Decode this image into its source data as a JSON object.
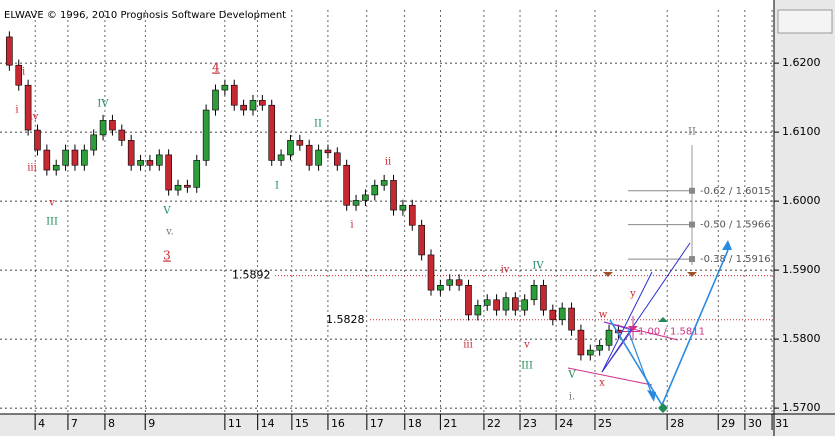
{
  "chart_data": {
    "type": "candlestick",
    "title": "ELWAVE © 1996, 2010 Prognosis Software Development",
    "x": [
      2,
      4,
      6,
      8,
      10,
      12,
      14,
      16,
      18,
      20,
      22,
      24,
      26,
      28,
      30,
      32,
      34,
      36,
      38,
      40,
      42,
      44,
      46,
      48,
      50,
      52,
      54,
      56,
      58,
      60,
      62,
      64,
      66,
      68,
      70,
      72,
      74,
      76,
      78,
      80,
      82,
      84,
      86,
      88,
      90,
      92,
      94,
      96,
      98,
      100,
      102,
      104,
      106,
      108,
      110,
      112,
      114,
      116,
      118,
      120,
      122,
      124,
      126,
      128,
      130,
      132
    ],
    "open": [
      1.6238,
      1.6197,
      1.6168,
      1.6103,
      1.6074,
      1.6045,
      1.6052,
      1.6074,
      1.6052,
      1.6074,
      1.6096,
      1.6117,
      1.6103,
      1.6088,
      1.6052,
      1.6059,
      1.6052,
      1.6067,
      1.6016,
      1.6023,
      1.602,
      1.6059,
      1.6132,
      1.6161,
      1.6168,
      1.6139,
      1.6132,
      1.6146,
      1.6139,
      1.6059,
      1.6067,
      1.6088,
      1.6081,
      1.6052,
      1.6074,
      1.607,
      1.6052,
      1.5994,
      1.6001,
      1.6009,
      1.6023,
      1.603,
      1.5987,
      1.5994,
      1.5965,
      1.5922,
      1.5871,
      1.5878,
      1.5886,
      1.5878,
      1.5835,
      1.5849,
      1.5857,
      1.5842,
      1.586,
      1.5842,
      1.5857,
      1.5878,
      1.5842,
      1.5828,
      1.5845,
      1.5813,
      1.5777,
      1.5784,
      1.5791,
      1.5813
    ],
    "high": [
      1.6246,
      1.6205,
      1.6176,
      1.6111,
      1.6082,
      1.606,
      1.6082,
      1.6082,
      1.6082,
      1.6104,
      1.6125,
      1.6125,
      1.6111,
      1.6096,
      1.6067,
      1.6067,
      1.6075,
      1.6075,
      1.6031,
      1.6031,
      1.6067,
      1.614,
      1.6169,
      1.6176,
      1.6176,
      1.6147,
      1.6154,
      1.6154,
      1.6147,
      1.6075,
      1.6096,
      1.6096,
      1.6089,
      1.6082,
      1.6082,
      1.6078,
      1.606,
      1.6009,
      1.6017,
      1.6031,
      1.6038,
      1.6038,
      1.6002,
      1.6002,
      1.5973,
      1.593,
      1.5886,
      1.5894,
      1.5894,
      1.5886,
      1.5857,
      1.5865,
      1.5865,
      1.5868,
      1.5868,
      1.5865,
      1.5886,
      1.5886,
      1.585,
      1.5853,
      1.5853,
      1.5821,
      1.5792,
      1.5799,
      1.5821,
      1.5821
    ],
    "low": [
      1.6189,
      1.616,
      1.6095,
      1.6066,
      1.6037,
      1.6037,
      1.6044,
      1.6044,
      1.6044,
      1.6066,
      1.6088,
      1.6095,
      1.608,
      1.6044,
      1.6044,
      1.6044,
      1.6044,
      1.6008,
      1.6008,
      1.6012,
      1.6012,
      1.6051,
      1.6124,
      1.6153,
      1.6131,
      1.6124,
      1.6124,
      1.6131,
      1.6051,
      1.6051,
      1.6059,
      1.6073,
      1.6044,
      1.6044,
      1.6062,
      1.6044,
      1.5986,
      1.5986,
      1.5993,
      1.6001,
      1.6015,
      1.5979,
      1.5979,
      1.5957,
      1.5914,
      1.5863,
      1.5863,
      1.587,
      1.587,
      1.5827,
      1.5827,
      1.5841,
      1.5834,
      1.5834,
      1.5834,
      1.5834,
      1.5849,
      1.5834,
      1.582,
      1.582,
      1.5805,
      1.5769,
      1.5769,
      1.5776,
      1.5783,
      1.5801
    ],
    "close": [
      1.6197,
      1.6168,
      1.6103,
      1.6074,
      1.6045,
      1.6052,
      1.6074,
      1.6052,
      1.6074,
      1.6096,
      1.6117,
      1.6103,
      1.6088,
      1.6052,
      1.6059,
      1.6052,
      1.6067,
      1.6016,
      1.6023,
      1.602,
      1.6059,
      1.6132,
      1.6161,
      1.6168,
      1.6139,
      1.6132,
      1.6146,
      1.6139,
      1.6059,
      1.6067,
      1.6088,
      1.6081,
      1.6052,
      1.6074,
      1.607,
      1.6052,
      1.5994,
      1.6001,
      1.6009,
      1.6023,
      1.603,
      1.5987,
      1.5994,
      1.5965,
      1.5922,
      1.5871,
      1.5878,
      1.5886,
      1.5878,
      1.5835,
      1.5849,
      1.5857,
      1.5842,
      1.586,
      1.5842,
      1.5857,
      1.5878,
      1.5842,
      1.5828,
      1.5845,
      1.5813,
      1.5777,
      1.5784,
      1.5791,
      1.5813,
      1.5809
    ],
    "up_color": "#2e9c3a",
    "down_color": "#c62832",
    "xlim": [
      0,
      165
    ],
    "xticks": [
      {
        "value": 7.5,
        "label": "4"
      },
      {
        "value": 14.5,
        "label": "7"
      },
      {
        "value": 22.4,
        "label": "8"
      },
      {
        "value": 31,
        "label": "9"
      },
      {
        "value": 48,
        "label": "11"
      },
      {
        "value": 55,
        "label": "14"
      },
      {
        "value": 62.3,
        "label": "15"
      },
      {
        "value": 70,
        "label": "16"
      },
      {
        "value": 78.3,
        "label": "17"
      },
      {
        "value": 86.4,
        "label": "18"
      },
      {
        "value": 94,
        "label": "21"
      },
      {
        "value": 103.3,
        "label": "22"
      },
      {
        "value": 111,
        "label": "23"
      },
      {
        "value": 118.7,
        "label": "24"
      },
      {
        "value": 127,
        "label": "25"
      },
      {
        "value": 142.4,
        "label": "28"
      },
      {
        "value": 153.3,
        "label": "29"
      },
      {
        "value": 159,
        "label": "30"
      },
      {
        "value": 164.8,
        "label": "31"
      }
    ],
    "ylim": [
      1.569,
      1.6277
    ],
    "yticks": [
      {
        "value": 1.57,
        "label": "1.5700"
      },
      {
        "value": 1.58,
        "label": "1.5800"
      },
      {
        "value": 1.59,
        "label": "1.5900"
      },
      {
        "value": 1.6,
        "label": "1.6000"
      },
      {
        "value": 1.61,
        "label": "1.6100"
      },
      {
        "value": 1.62,
        "label": "1.6200"
      }
    ],
    "grid": true,
    "levels": [
      1.5892,
      1.5828
    ],
    "targets": [
      {
        "value": 1.6015,
        "label": "-0.62 / 1.6015"
      },
      {
        "value": 1.5966,
        "label": "-0.50 / 1.5966"
      },
      {
        "value": 1.5916,
        "label": "-0.38 / 1.5916"
      },
      {
        "value": 1.5811,
        "label": "1.00 / 1.5811"
      }
    ],
    "wave_labels": [
      {
        "text": "ii",
        "color": "#c62832"
      },
      {
        "text": "i",
        "color": "#c62832"
      },
      {
        "text": "iv",
        "color": "#c62832"
      },
      {
        "text": "iii",
        "color": "#c62832"
      },
      {
        "text": "v",
        "color": "#c62832"
      },
      {
        "text": "III",
        "color": "#1f8a5a"
      },
      {
        "text": "IV",
        "color": "#1f8a5a"
      },
      {
        "text": "V",
        "color": "#1f8a5a"
      },
      {
        "text": "v.",
        "color": "#777777"
      },
      {
        "text": "3",
        "color": "#c62832"
      },
      {
        "text": "4",
        "color": "#c62832"
      },
      {
        "text": "II",
        "color": "#1f8a5a"
      },
      {
        "text": "I",
        "color": "#1f8a5a"
      },
      {
        "text": "ii",
        "color": "#c62832"
      },
      {
        "text": "i",
        "color": "#c62832"
      },
      {
        "text": "iv",
        "color": "#c62832"
      },
      {
        "text": "IV",
        "color": "#1f8a5a"
      },
      {
        "text": "iii",
        "color": "#c62832"
      },
      {
        "text": "v",
        "color": "#c62832"
      },
      {
        "text": "III",
        "color": "#1f8a5a"
      },
      {
        "text": "V",
        "color": "#1f8a5a"
      },
      {
        "text": "i.",
        "color": "#777777"
      },
      {
        "text": "w",
        "color": "#c62832"
      },
      {
        "text": "x",
        "color": "#c62832"
      },
      {
        "text": "y",
        "color": "#c62832"
      },
      {
        "text": "II",
        "color": "#777777"
      }
    ]
  }
}
